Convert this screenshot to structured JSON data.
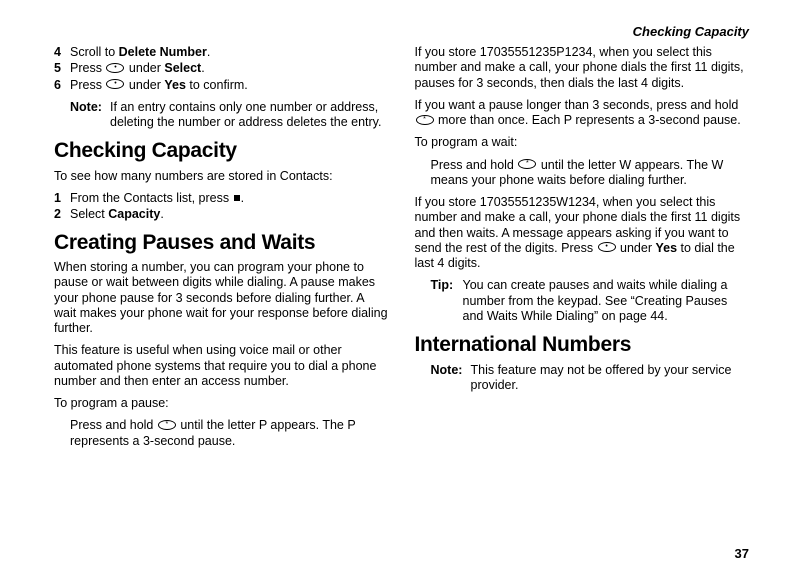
{
  "header": {
    "running_title": "Checking Capacity"
  },
  "page_number": "37",
  "col1": {
    "steps_a": [
      {
        "num": "4",
        "pre": "Scroll to ",
        "bold": "Delete Number",
        "post": "."
      },
      {
        "num": "5",
        "pre": "Press ",
        "icon": "A",
        "mid": " under ",
        "bold": "Select",
        "post": "."
      },
      {
        "num": "6",
        "pre": "Press ",
        "icon": "A",
        "mid": " under ",
        "bold": "Yes",
        "post": " to confirm."
      }
    ],
    "note1": {
      "label": "Note:",
      "text": "If an entry contains only one number or address, deleting the number or address deletes the entry."
    },
    "h2a": "Checking Capacity",
    "p1": "To see how many numbers are stored in Contacts:",
    "steps_b": [
      {
        "num": "1",
        "pre": "From the Contacts list, press ",
        "icon": "m",
        "post": "."
      },
      {
        "num": "2",
        "pre": "Select ",
        "bold": "Capacity",
        "post": "."
      }
    ],
    "h2b": "Creating Pauses and Waits",
    "p2": "When storing a number, you can program your phone to pause or wait between digits while dialing. A pause makes your phone pause for 3 seconds before dialing further. A wait makes your phone wait for your response before dialing further.",
    "p3": "This feature is useful when using voice mail or other automated phone systems that require you to dial a phone number and then enter an access number.",
    "p4": "To program a pause:",
    "indent1_pre": "Press and hold ",
    "indent1_icon": "*",
    "indent1_post": " until the letter P appears. The P represents a 3-second pause."
  },
  "col2": {
    "p1": "If you store 17035551235P1234, when you select this number and make a call, your phone dials the first 11 digits, pauses for 3 seconds, then dials the last 4 digits.",
    "p2_pre": "If you want a pause longer than 3 seconds, press and hold ",
    "p2_icon": "*",
    "p2_post": " more than once. Each P represents a 3-second pause.",
    "p3": "To program a wait:",
    "indent1_pre": "Press and hold ",
    "indent1_icon": "*",
    "indent1_post": " until the letter W appears. The W means your phone waits before dialing further.",
    "p4_pre": "If you store 17035551235W1234, when you select this number and make a call, your phone dials the first 11 digits and then waits. A message appears asking if you want to send the rest of the digits. Press ",
    "p4_icon": "A",
    "p4_mid": " under ",
    "p4_bold": "Yes",
    "p4_post": " to dial the last 4 digits.",
    "tip": {
      "label": "Tip:",
      "text": "You can create pauses and waits while dialing a number from the keypad. See “Creating Pauses and Waits While Dialing” on page 44."
    },
    "h2": "International Numbers",
    "note": {
      "label": "Note:",
      "text": "This feature may not be offered by your service provider."
    }
  }
}
